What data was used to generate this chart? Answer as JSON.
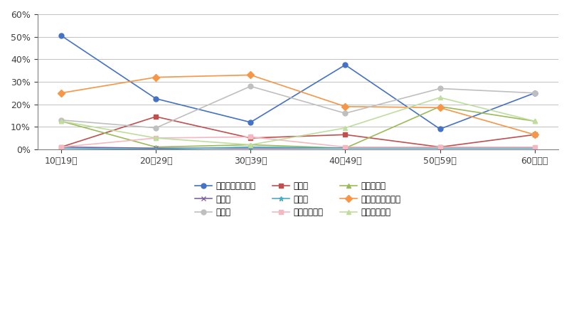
{
  "categories": [
    "10～19歳",
    "20～29歳",
    "30～39歳",
    "40～49歳",
    "50～59歳",
    "60歳以上"
  ],
  "series": {
    "就職・転職・転業": {
      "values": [
        50.5,
        22.5,
        12.0,
        37.5,
        9.0,
        25.0
      ],
      "color": "#4472C4",
      "marker": "o"
    },
    "転　動": {
      "values": [
        1.0,
        14.5,
        5.0,
        6.5,
        1.0,
        6.5
      ],
      "color": "#C0504D",
      "marker": "s"
    },
    "退職・廃業": {
      "values": [
        12.5,
        1.0,
        2.0,
        0.5,
        19.0,
        12.5
      ],
      "color": "#9BBB59",
      "marker": "^"
    },
    "就　学": {
      "values": [
        1.0,
        0.5,
        0.5,
        0.5,
        0.5,
        0.5
      ],
      "color": "#8064A2",
      "marker": "x"
    },
    "卒　業": {
      "values": [
        0.5,
        0.0,
        1.0,
        0.5,
        0.5,
        0.5
      ],
      "color": "#4BACC6",
      "marker": "*"
    },
    "結婚・離婚・縁組": {
      "values": [
        25.0,
        32.0,
        33.0,
        19.0,
        18.5,
        6.5
      ],
      "color": "#F79646",
      "marker": "D"
    },
    "住　宅": {
      "values": [
        13.0,
        9.5,
        28.0,
        16.0,
        27.0,
        25.0
      ],
      "color": "#BFBFBF",
      "marker": "o"
    },
    "交通の利便性": {
      "values": [
        1.0,
        5.0,
        5.5,
        1.0,
        1.0,
        1.0
      ],
      "color": "#F4B8C1",
      "marker": "s"
    },
    "生活の利便性": {
      "values": [
        12.5,
        5.0,
        2.0,
        9.5,
        23.0,
        12.5
      ],
      "color": "#BFDD9E",
      "marker": "^"
    }
  },
  "ylim": [
    0,
    60
  ],
  "yticks": [
    0,
    10,
    20,
    30,
    40,
    50,
    60
  ],
  "background_color": "#FFFFFF"
}
